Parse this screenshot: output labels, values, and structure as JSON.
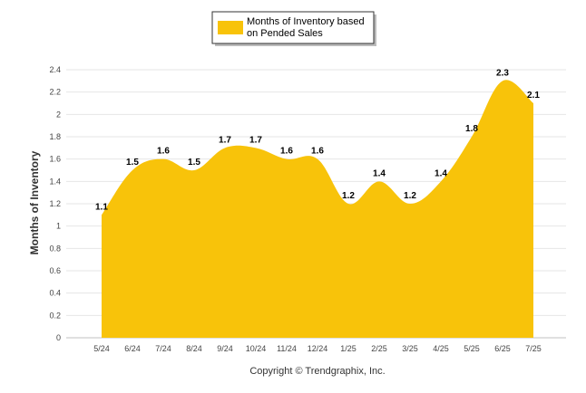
{
  "chart_data": {
    "type": "area",
    "categories": [
      "5/24",
      "6/24",
      "7/24",
      "8/24",
      "9/24",
      "10/24",
      "11/24",
      "12/24",
      "1/25",
      "2/25",
      "3/25",
      "4/25",
      "5/25",
      "6/25",
      "7/25"
    ],
    "series": [
      {
        "name": "Months of Inventory based on Pended Sales",
        "legend_lines": [
          "Months of Inventory based",
          "on Pended Sales"
        ],
        "values": [
          1.1,
          1.5,
          1.6,
          1.5,
          1.7,
          1.7,
          1.6,
          1.6,
          1.2,
          1.4,
          1.2,
          1.4,
          1.8,
          2.3,
          2.1
        ],
        "color": "#f8c30a"
      }
    ],
    "ylabel": "Months of Inventory",
    "ylim": [
      0,
      2.4
    ],
    "yticks": [
      "0",
      "0.2",
      "0.4",
      "0.6",
      "0.8",
      "1",
      "1.2",
      "1.4",
      "1.6",
      "1.8",
      "2",
      "2.2",
      "2.4"
    ],
    "grid": true,
    "legend_position": "top-center"
  },
  "footer": {
    "copyright": "Copyright © Trendgraphix, Inc."
  }
}
